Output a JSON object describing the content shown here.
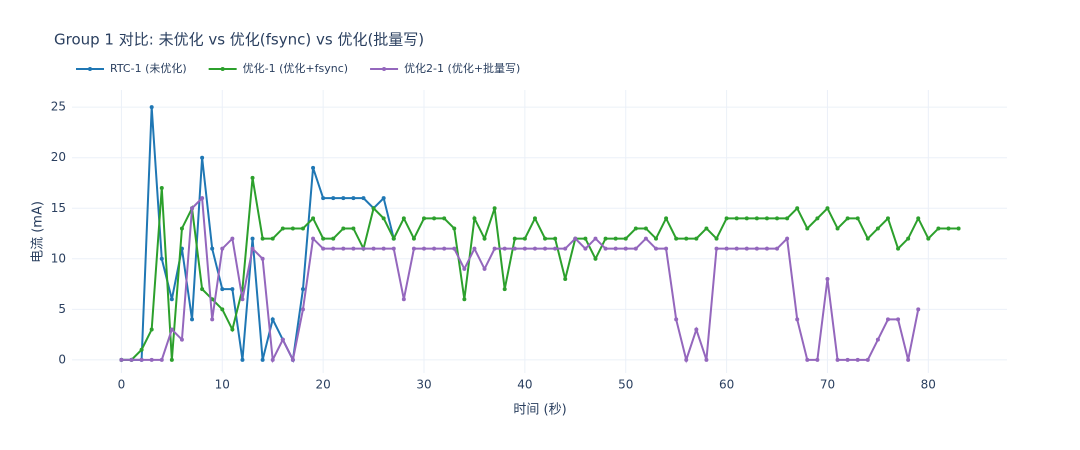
{
  "chart_data": {
    "type": "line",
    "title": "Group 1 对比: 未优化 vs 优化(fsync) vs 优化(批量写)",
    "x_label": "时间 (秒)",
    "y_label": "电流 (mA)",
    "xlim": [
      -4.9,
      87.8
    ],
    "ylim": [
      -1.3,
      26.7
    ],
    "xticks": [
      0,
      10,
      20,
      30,
      40,
      50,
      60,
      70,
      80
    ],
    "yticks": [
      0,
      5,
      10,
      15,
      20,
      25
    ],
    "grid": true,
    "legend": "top-left",
    "series": [
      {
        "name": "RTC-1 (未优化)",
        "color": "#1f77b4",
        "x": [
          0,
          1,
          2,
          3,
          4,
          5,
          6,
          7,
          8,
          9,
          10,
          11,
          12,
          13,
          14,
          15,
          16,
          17,
          18,
          19,
          20,
          21,
          22,
          23,
          24,
          25,
          26,
          27
        ],
        "values": [
          0,
          0,
          0,
          25,
          10,
          6,
          11,
          4,
          20,
          11,
          7,
          7,
          0,
          12,
          0,
          4,
          2,
          0,
          7,
          19,
          16,
          16,
          16,
          16,
          16,
          15,
          16,
          12
        ]
      },
      {
        "name": "优化-1 (优化+fsync)",
        "color": "#2ca02c",
        "x": [
          0,
          1,
          2,
          3,
          4,
          5,
          6,
          7,
          8,
          9,
          10,
          11,
          12,
          13,
          14,
          15,
          16,
          17,
          18,
          19,
          20,
          21,
          22,
          23,
          24,
          25,
          26,
          27,
          28,
          29,
          30,
          31,
          32,
          33,
          34,
          35,
          36,
          37,
          38,
          39,
          40,
          41,
          42,
          43,
          44,
          45,
          46,
          47,
          48,
          49,
          50,
          51,
          52,
          53,
          54,
          55,
          56,
          57,
          58,
          59,
          60,
          61,
          62,
          63,
          64,
          65,
          66,
          67,
          68,
          69,
          70,
          71,
          72,
          73,
          74,
          75,
          76,
          77,
          78,
          79,
          80,
          81,
          82,
          83
        ],
        "values": [
          0,
          0,
          1,
          3,
          17,
          0,
          13,
          15,
          7,
          6,
          5,
          3,
          7,
          18,
          12,
          12,
          13,
          13,
          13,
          14,
          12,
          12,
          13,
          13,
          11,
          15,
          14,
          12,
          14,
          12,
          14,
          14,
          14,
          13,
          6,
          14,
          12,
          15,
          7,
          12,
          12,
          14,
          12,
          12,
          8,
          12,
          12,
          10,
          12,
          12,
          12,
          13,
          13,
          12,
          14,
          12,
          12,
          12,
          13,
          12,
          14,
          14,
          14,
          14,
          14,
          14,
          14,
          15,
          13,
          14,
          15,
          13,
          14,
          14,
          12,
          13,
          14,
          11,
          12,
          14,
          12,
          13,
          13,
          13
        ]
      },
      {
        "name": "优化2-1 (优化+批量写)",
        "color": "#9467bd",
        "x": [
          0,
          1,
          2,
          3,
          4,
          5,
          6,
          7,
          8,
          9,
          10,
          11,
          12,
          13,
          14,
          15,
          16,
          17,
          18,
          19,
          20,
          21,
          22,
          23,
          24,
          25,
          26,
          27,
          28,
          29,
          30,
          31,
          32,
          33,
          34,
          35,
          36,
          37,
          38,
          39,
          40,
          41,
          42,
          43,
          44,
          45,
          46,
          47,
          48,
          49,
          50,
          51,
          52,
          53,
          54,
          55,
          56,
          57,
          58,
          59,
          60,
          61,
          62,
          63,
          64,
          65,
          66,
          67,
          68,
          69,
          70,
          71,
          72,
          73,
          74,
          75,
          76,
          77,
          78,
          79
        ],
        "values": [
          0,
          0,
          0,
          0,
          0,
          3,
          2,
          15,
          16,
          4,
          11,
          12,
          6,
          11,
          10,
          0,
          2,
          0,
          5,
          12,
          11,
          11,
          11,
          11,
          11,
          11,
          11,
          11,
          6,
          11,
          11,
          11,
          11,
          11,
          9,
          11,
          9,
          11,
          11,
          11,
          11,
          11,
          11,
          11,
          11,
          12,
          11,
          12,
          11,
          11,
          11,
          11,
          12,
          11,
          11,
          4,
          0,
          3,
          0,
          11,
          11,
          11,
          11,
          11,
          11,
          11,
          12,
          4,
          0,
          0,
          8,
          0,
          0,
          0,
          0,
          2,
          4,
          4,
          0,
          5
        ]
      }
    ]
  }
}
